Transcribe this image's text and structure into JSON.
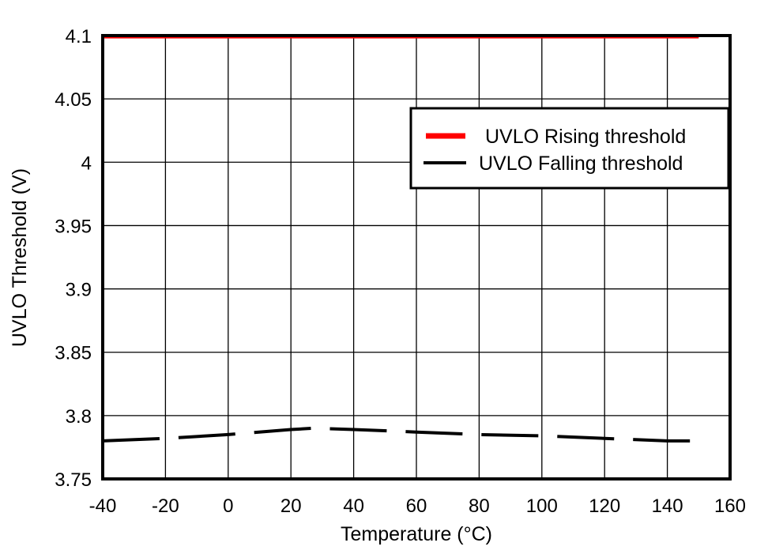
{
  "chart_data": {
    "type": "line",
    "title": "",
    "xlabel": "Temperature (°C)",
    "ylabel": "UVLO Threshold (V)",
    "xlim": [
      -40,
      160
    ],
    "ylim": [
      3.75,
      4.1
    ],
    "grid": true,
    "legend_position": "upper right",
    "x_ticks": [
      -40,
      -20,
      0,
      20,
      40,
      60,
      80,
      100,
      120,
      140,
      160
    ],
    "x_tick_labels": [
      "-40",
      "-20",
      "0",
      "20",
      "40",
      "60",
      "80",
      "100",
      "120",
      "140",
      "160"
    ],
    "y_ticks": [
      3.75,
      3.8,
      3.85,
      3.9,
      3.95,
      4.0,
      4.05,
      4.1
    ],
    "y_tick_labels": [
      "3.75",
      "3.8",
      "3.85",
      "3.9",
      "3.95",
      "4",
      "4.05",
      "4.1"
    ],
    "series": [
      {
        "name": "UVLO Rising threshold",
        "color": "#ff0000",
        "style": "solid",
        "x": [
          -40,
          -20,
          0,
          20,
          40,
          60,
          80,
          100,
          120,
          140,
          150
        ],
        "values": [
          4.099,
          4.099,
          4.099,
          4.099,
          4.099,
          4.099,
          4.099,
          4.099,
          4.099,
          4.099,
          4.099
        ]
      },
      {
        "name": "UVLO Falling threshold",
        "color": "#000000",
        "style": "dashed",
        "x": [
          -40,
          -20,
          0,
          20,
          27,
          40,
          60,
          80,
          100,
          120,
          140,
          150
        ],
        "values": [
          3.78,
          3.782,
          3.785,
          3.789,
          3.79,
          3.789,
          3.787,
          3.785,
          3.784,
          3.782,
          3.78,
          3.78
        ]
      }
    ]
  }
}
